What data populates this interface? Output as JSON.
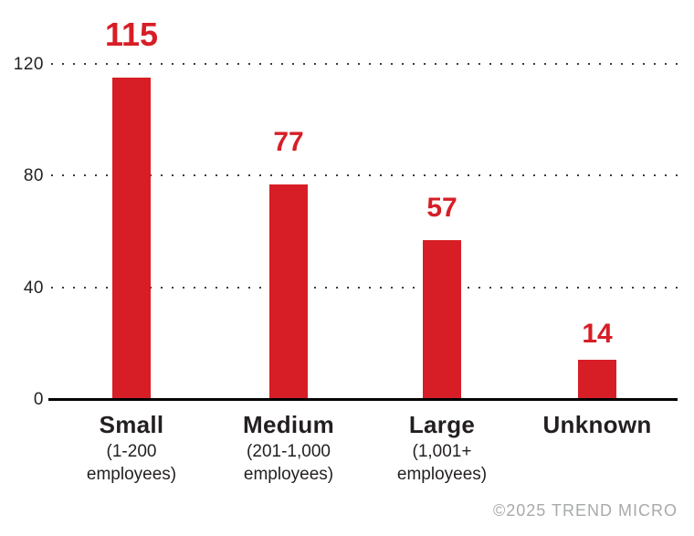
{
  "chart_data": {
    "type": "bar",
    "categories": [
      {
        "label": "Small",
        "sublabel_lines": [
          "(1-200",
          "employees)"
        ]
      },
      {
        "label": "Medium",
        "sublabel_lines": [
          "(201-1,000",
          "employees)"
        ]
      },
      {
        "label": "Large",
        "sublabel_lines": [
          "(1,001+",
          "employees)"
        ]
      },
      {
        "label": "Unknown",
        "sublabel_lines": []
      }
    ],
    "values": [
      115,
      77,
      57,
      14
    ],
    "title": "",
    "xlabel": "",
    "ylabel": "",
    "ylim": [
      0,
      120
    ],
    "yticks": [
      0,
      40,
      80,
      120
    ],
    "grid": "dotted-horizontal",
    "legend": "none",
    "bar_color": "#d71e26",
    "value_label_color": "#d71e26",
    "axis_text_color": "#231f20",
    "axis_line_color": "#000000",
    "gridline_color": "#3c3c3c"
  },
  "footer": {
    "copyright": "©2025 TREND MICRO"
  }
}
